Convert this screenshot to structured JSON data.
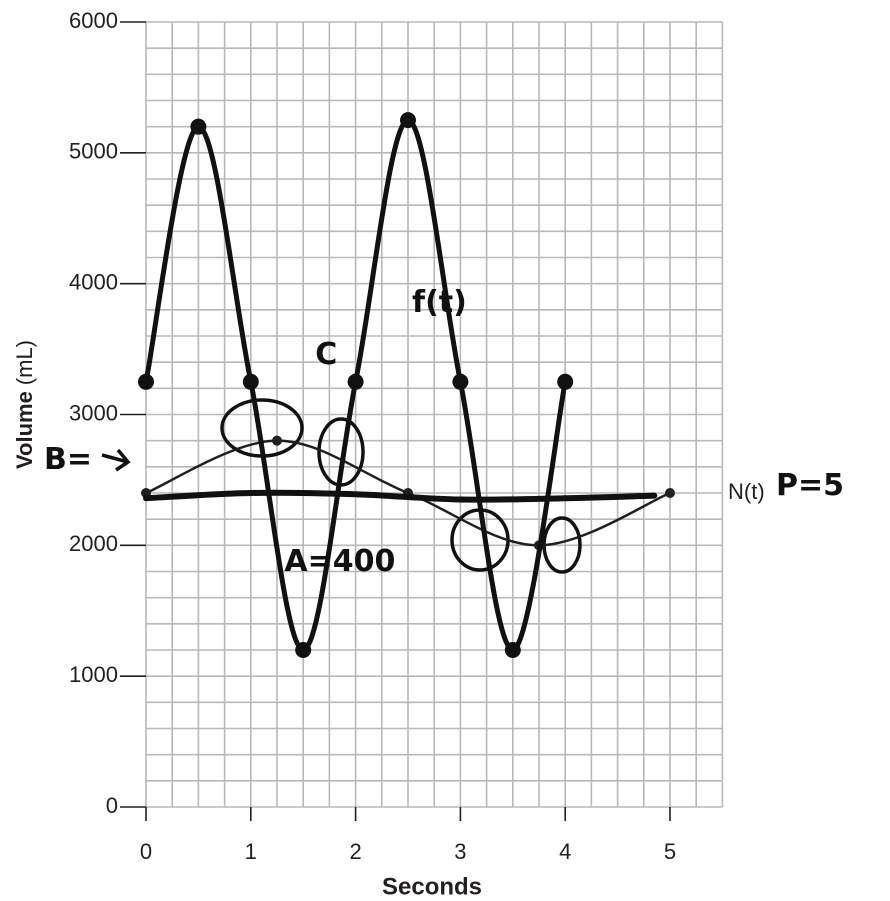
{
  "chart_data": {
    "type": "line",
    "x_label": "Seconds",
    "y_label": "Volume",
    "y_label_unit": "(mL)",
    "xlim": [
      0,
      5.5
    ],
    "ylim": [
      0,
      6000
    ],
    "xticks": [
      0,
      1,
      2,
      3,
      4,
      5
    ],
    "yticks": [
      0,
      1000,
      2000,
      3000,
      4000,
      5000,
      6000
    ],
    "grid": true,
    "grid_minor": {
      "x": 0.25,
      "y": 200
    },
    "series": [
      {
        "name": "N(t)",
        "color": "#231f20",
        "x": [
          0,
          1.25,
          2.5,
          3.75,
          5
        ],
        "values": [
          2400,
          2800,
          2400,
          2000,
          2400
        ]
      },
      {
        "name": "f(t)",
        "color": "#111111",
        "x": [
          0,
          0.5,
          1,
          1.5,
          2,
          2.5,
          3,
          3.5,
          4
        ],
        "values": [
          3250,
          5200,
          3250,
          1200,
          3250,
          5250,
          3250,
          1200,
          3250
        ]
      },
      {
        "color": "#111111",
        "x": [
          0,
          1,
          2,
          3,
          4,
          4.85
        ],
        "values": [
          2360,
          2400,
          2390,
          2350,
          2360,
          2380
        ]
      }
    ],
    "annotations": [
      "A=400",
      "P=5",
      "B=",
      "C"
    ]
  }
}
